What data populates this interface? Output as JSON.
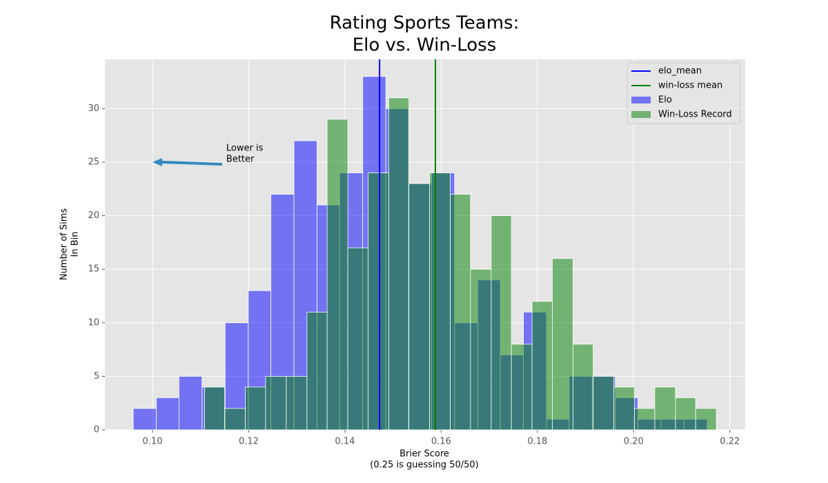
{
  "chart_data": {
    "type": "histogram",
    "title": [
      "Rating Sports Teams:",
      "Elo vs. Win-Loss"
    ],
    "xlabel": [
      "Brier Score",
      "(0.25 is guessing 50/50)"
    ],
    "ylabel": [
      "Number of Sims",
      "In Bin"
    ],
    "xlim": [
      0.0901,
      0.2232
    ],
    "ylim": [
      0,
      34.6
    ],
    "xticks": [
      {
        "value": 0.1,
        "label": "0.10"
      },
      0.12,
      0.14,
      0.16,
      0.18,
      {
        "value": 0.2,
        "label": "0.20"
      },
      0.22
    ],
    "yticks": [
      0,
      5,
      10,
      15,
      20,
      25,
      30
    ],
    "grid": true,
    "legend": "upper right",
    "mean_lines": [
      {
        "name": "elo_mean",
        "color": "#0000ff",
        "x": 0.1472
      },
      {
        "name": "win-loss mean",
        "color": "#008000",
        "x": 0.1588
      }
    ],
    "series": [
      {
        "name": "Elo",
        "color": "#0000ff",
        "bins": [
          0.096,
          0.1008,
          0.1055,
          0.1103,
          0.1151,
          0.1199,
          0.1246,
          0.1294,
          0.1342,
          0.1389,
          0.1437,
          0.1485,
          0.1532,
          0.158,
          0.1628,
          0.1676,
          0.1723,
          0.1771,
          0.1819,
          0.1866,
          0.1914,
          0.1962,
          0.2009,
          0.2057,
          0.2105,
          0.2153
        ],
        "values": [
          2,
          3,
          5,
          4,
          10,
          13,
          22,
          27,
          21,
          24,
          33,
          30,
          23,
          24,
          10,
          14,
          7,
          11,
          1,
          5,
          5,
          3,
          1,
          1,
          1
        ]
      },
      {
        "name": "Win-Loss Record",
        "color": "#008000",
        "bins": [
          0.1108,
          0.115,
          0.1193,
          0.1235,
          0.1278,
          0.1321,
          0.1363,
          0.1406,
          0.1448,
          0.1491,
          0.1533,
          0.1576,
          0.1619,
          0.1661,
          0.1704,
          0.1746,
          0.1789,
          0.1831,
          0.1874,
          0.1916,
          0.1959,
          0.2002,
          0.2044,
          0.2087,
          0.2129,
          0.2172
        ],
        "values": [
          4,
          2,
          4,
          5,
          5,
          11,
          29,
          17,
          24,
          31,
          23,
          24,
          22,
          15,
          20,
          8,
          12,
          16,
          8,
          5,
          4,
          2,
          4,
          3,
          2
        ]
      }
    ],
    "annotation": {
      "text": [
        "Lower is",
        "Better"
      ],
      "xy": [
        0.1,
        25
      ],
      "xytext": [
        0.1149,
        25.0
      ],
      "color": "#348abd"
    }
  }
}
